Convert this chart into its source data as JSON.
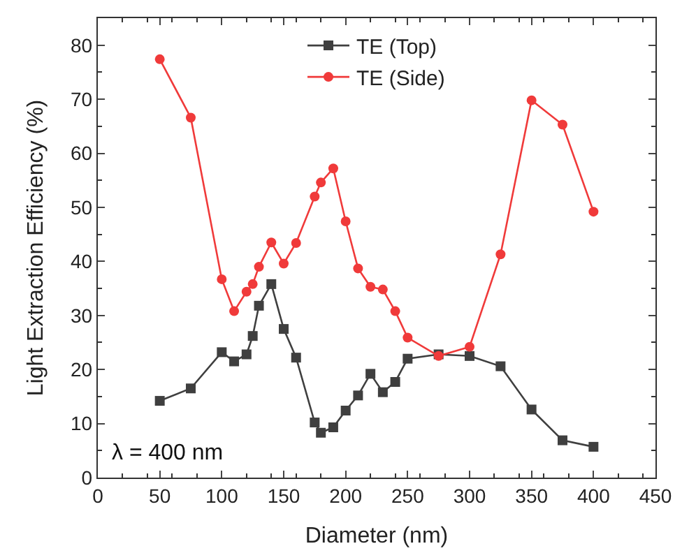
{
  "chart_data": {
    "type": "line",
    "xlabel": "Diameter (nm)",
    "ylabel": "Light Extraction Efficiency (%)",
    "x": [
      50,
      75,
      100,
      110,
      120,
      125,
      130,
      140,
      150,
      160,
      175,
      180,
      190,
      200,
      210,
      220,
      230,
      240,
      250,
      275,
      300,
      325,
      350,
      375,
      400
    ],
    "series": [
      {
        "name": "TE (Top)",
        "color": "#3f3f3f",
        "marker": "square",
        "values": [
          14.2,
          16.5,
          23.2,
          21.5,
          22.8,
          26.2,
          31.8,
          35.8,
          27.5,
          22.2,
          10.2,
          8.3,
          9.3,
          12.4,
          15.2,
          19.2,
          15.8,
          17.7,
          22,
          22.8,
          22.5,
          20.6,
          12.6,
          6.9,
          5.7
        ]
      },
      {
        "name": "TE (Side)",
        "color": "#f03a3a",
        "marker": "circle",
        "values": [
          77.4,
          66.6,
          36.7,
          30.8,
          34.4,
          35.8,
          39,
          43.5,
          39.6,
          43.4,
          52,
          54.6,
          57.2,
          47.4,
          38.7,
          35.3,
          34.8,
          30.8,
          25.9,
          22.5,
          24.2,
          41.3,
          69.8,
          65.3,
          49.2
        ]
      }
    ],
    "xlim": [
      0,
      450
    ],
    "xticks": [
      0,
      50,
      100,
      150,
      200,
      250,
      300,
      350,
      400,
      450
    ],
    "ylim": [
      0,
      85
    ],
    "yticks": [
      0,
      10,
      20,
      30,
      40,
      50,
      60,
      70,
      80
    ],
    "legend": "top",
    "line_style": "solid",
    "annotations": [
      "λ = 400 nm"
    ]
  }
}
